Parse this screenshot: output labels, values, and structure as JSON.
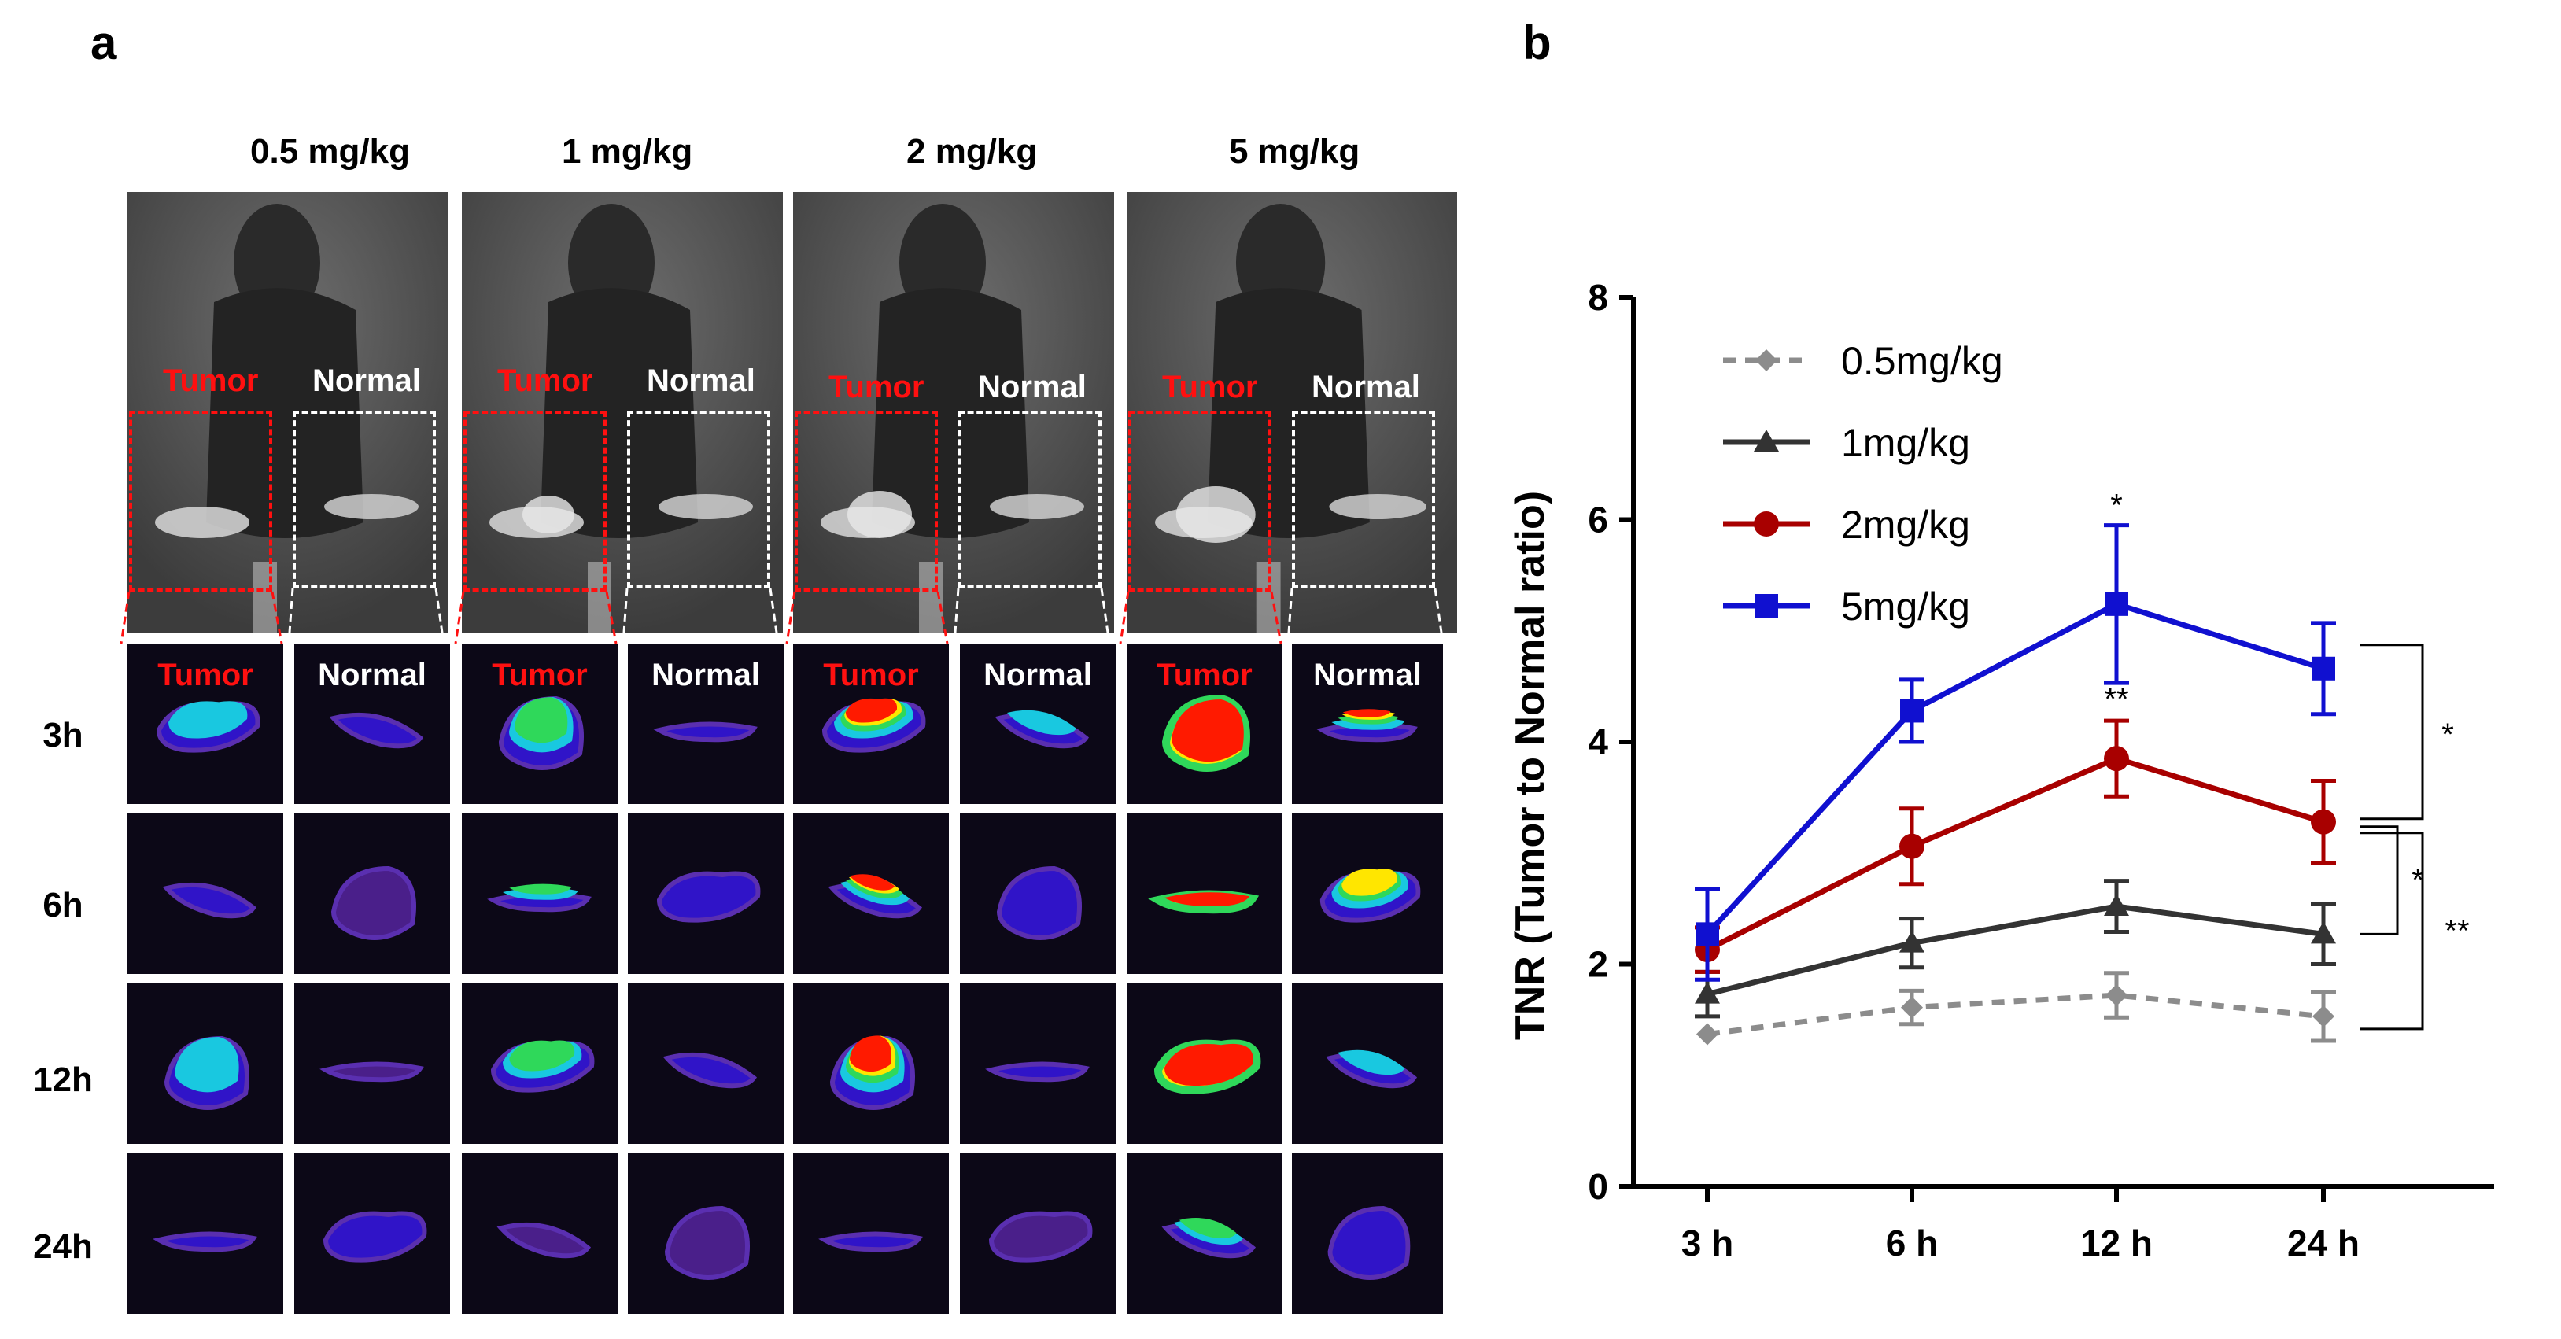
{
  "panel_a": {
    "letter": "a",
    "doses": [
      "0.5 mg/kg",
      "1 mg/kg",
      "2 mg/kg",
      "5 mg/kg"
    ],
    "tumor_label": "Tumor",
    "normal_label": "Normal",
    "time_points": [
      "3h",
      "6h",
      "12h",
      "24h"
    ]
  },
  "panel_b": {
    "letter": "b"
  },
  "chart_data": {
    "type": "line",
    "title": "",
    "xlabel": "",
    "ylabel": "TNR (Tumor to Normal ratio)",
    "categories": [
      "3 h",
      "6 h",
      "12 h",
      "24 h"
    ],
    "ylim": [
      0,
      8
    ],
    "yticks": [
      0,
      2,
      4,
      6,
      8
    ],
    "grid": false,
    "legend_position": "top-left",
    "series": [
      {
        "name": "0.5mg/kg",
        "color": "#8c8c8c",
        "marker": "diamond",
        "dashed": true,
        "values": [
          1.37,
          1.61,
          1.72,
          1.53
        ],
        "errors": [
          0.0,
          0.15,
          0.2,
          0.22
        ]
      },
      {
        "name": "1mg/kg",
        "color": "#333333",
        "marker": "triangle",
        "dashed": false,
        "values": [
          1.73,
          2.19,
          2.52,
          2.27
        ],
        "errors": [
          0.2,
          0.22,
          0.23,
          0.27
        ]
      },
      {
        "name": "2mg/kg",
        "color": "#a80000",
        "marker": "circle",
        "dashed": false,
        "values": [
          2.13,
          3.06,
          3.85,
          3.28
        ],
        "errors": [
          0.2,
          0.34,
          0.34,
          0.37
        ]
      },
      {
        "name": "5mg/kg",
        "color": "#1010d0",
        "marker": "square",
        "dashed": false,
        "values": [
          2.27,
          4.28,
          5.24,
          4.66
        ],
        "errors": [
          0.41,
          0.28,
          0.71,
          0.41
        ]
      }
    ],
    "annotations": [
      {
        "text": "*",
        "category": "12 h",
        "series": "5mg/kg"
      },
      {
        "text": "**",
        "category": "12 h",
        "series": "2mg/kg"
      },
      {
        "text": "*",
        "bracket": "5mg/kg vs 2mg/kg at 24 h"
      },
      {
        "text": "*",
        "bracket": "2mg/kg vs 1mg/kg at 24 h"
      },
      {
        "text": "**",
        "bracket": "2mg/kg vs 0.5mg/kg at 24 h"
      }
    ]
  }
}
